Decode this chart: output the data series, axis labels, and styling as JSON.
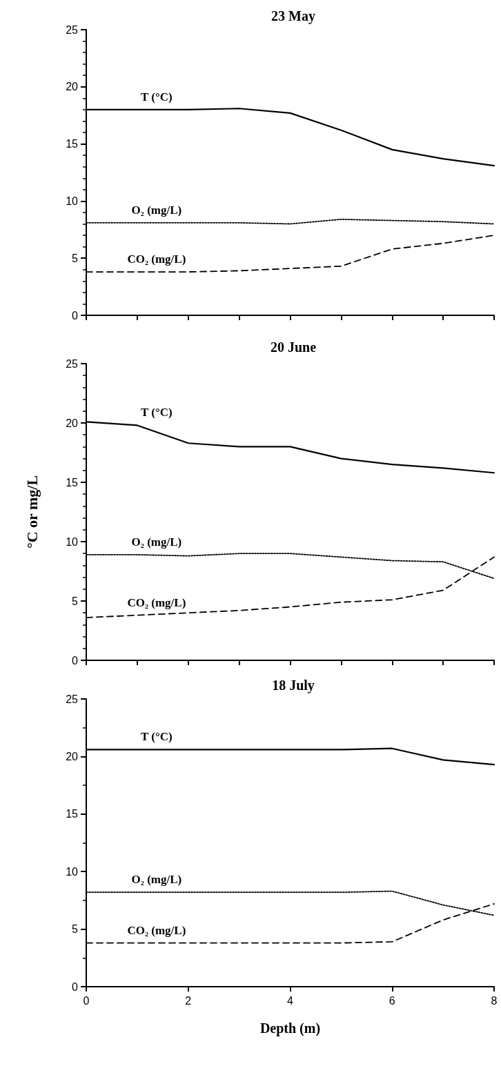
{
  "chart_data": [
    {
      "type": "line",
      "title": "23 May",
      "x": [
        0,
        1,
        2,
        3,
        4,
        5,
        6,
        7,
        8
      ],
      "xlim": [
        0,
        8
      ],
      "xticks": [
        0,
        {
          "value": 1,
          "label": null
        },
        2,
        {
          "value": 3,
          "label": null
        },
        4,
        {
          "value": 5,
          "label": null
        },
        6,
        {
          "value": 7,
          "label": null
        },
        8
      ],
      "ylim": [
        0,
        25
      ],
      "yticks": [
        0,
        5,
        10,
        15,
        20,
        25
      ],
      "tick_labels": "y",
      "grid": false,
      "legend": false,
      "marker": "none",
      "series": [
        {
          "name": "T (°C)",
          "color": "#000000",
          "line_style": "solid",
          "values": [
            18,
            18,
            18,
            18.1,
            17.7,
            16.2,
            14.5,
            13.7,
            13.1
          ]
        },
        {
          "name": "O₂ (mg/L)",
          "color": "#000000",
          "line_style": "dotted",
          "values": [
            8.1,
            8.1,
            8.1,
            8.1,
            8.0,
            8.4,
            8.3,
            8.2,
            8.0
          ]
        },
        {
          "name": "CO₂ (mg/L)",
          "color": "#000000",
          "line_style": "dashed",
          "values": [
            3.8,
            3.8,
            3.8,
            3.9,
            4.1,
            4.3,
            5.8,
            6.3,
            7.0
          ]
        }
      ]
    },
    {
      "type": "line",
      "title": "20 June",
      "ylabel": "°C or mg/L",
      "x": [
        0,
        1,
        2,
        3,
        4,
        5,
        6,
        7,
        8
      ],
      "xlim": [
        0,
        8
      ],
      "xticks": [
        0,
        {
          "value": 1,
          "label": null
        },
        2,
        {
          "value": 3,
          "label": null
        },
        4,
        {
          "value": 5,
          "label": null
        },
        6,
        {
          "value": 7,
          "label": null
        },
        8
      ],
      "ylim": [
        0,
        25
      ],
      "yticks": [
        0,
        5,
        10,
        15,
        20,
        25
      ],
      "tick_labels": "y",
      "grid": false,
      "legend": false,
      "marker": "none",
      "series": [
        {
          "name": "T (°C)",
          "color": "#000000",
          "line_style": "solid",
          "values": [
            20.1,
            19.8,
            18.3,
            18.0,
            18.0,
            17.0,
            16.5,
            16.2,
            15.8
          ]
        },
        {
          "name": "O₂ (mg/L)",
          "color": "#000000",
          "line_style": "dotted",
          "values": [
            8.9,
            8.9,
            8.8,
            9.0,
            9.0,
            8.7,
            8.4,
            8.3,
            6.9
          ]
        },
        {
          "name": "CO₂ (mg/L)",
          "color": "#000000",
          "line_style": "dashed",
          "values": [
            3.6,
            3.8,
            4.0,
            4.2,
            4.5,
            4.9,
            5.1,
            5.9,
            8.7
          ]
        }
      ]
    },
    {
      "type": "line",
      "title": "18 July",
      "xlabel": "Depth (m)",
      "x": [
        0,
        1,
        2,
        3,
        4,
        5,
        6,
        7,
        8
      ],
      "xlim": [
        0,
        8
      ],
      "xticks": [
        0,
        2,
        4,
        6,
        8
      ],
      "ylim": [
        0,
        25
      ],
      "yticks": [
        0,
        5,
        10,
        15,
        20,
        25
      ],
      "grid": false,
      "legend": false,
      "marker": "none",
      "series": [
        {
          "name": "T (°C)",
          "color": "#000000",
          "line_style": "solid",
          "values": [
            20.6,
            20.6,
            20.6,
            20.6,
            20.6,
            20.6,
            20.7,
            19.7,
            19.3
          ]
        },
        {
          "name": "O₂ (mg/L)",
          "color": "#000000",
          "line_style": "dotted",
          "values": [
            8.2,
            8.2,
            8.2,
            8.2,
            8.2,
            8.2,
            8.3,
            7.1,
            6.2
          ]
        },
        {
          "name": "CO₂ (mg/L)",
          "color": "#000000",
          "line_style": "dashed",
          "values": [
            3.8,
            3.8,
            3.8,
            3.8,
            3.8,
            3.8,
            3.9,
            5.8,
            7.2
          ]
        }
      ]
    }
  ]
}
